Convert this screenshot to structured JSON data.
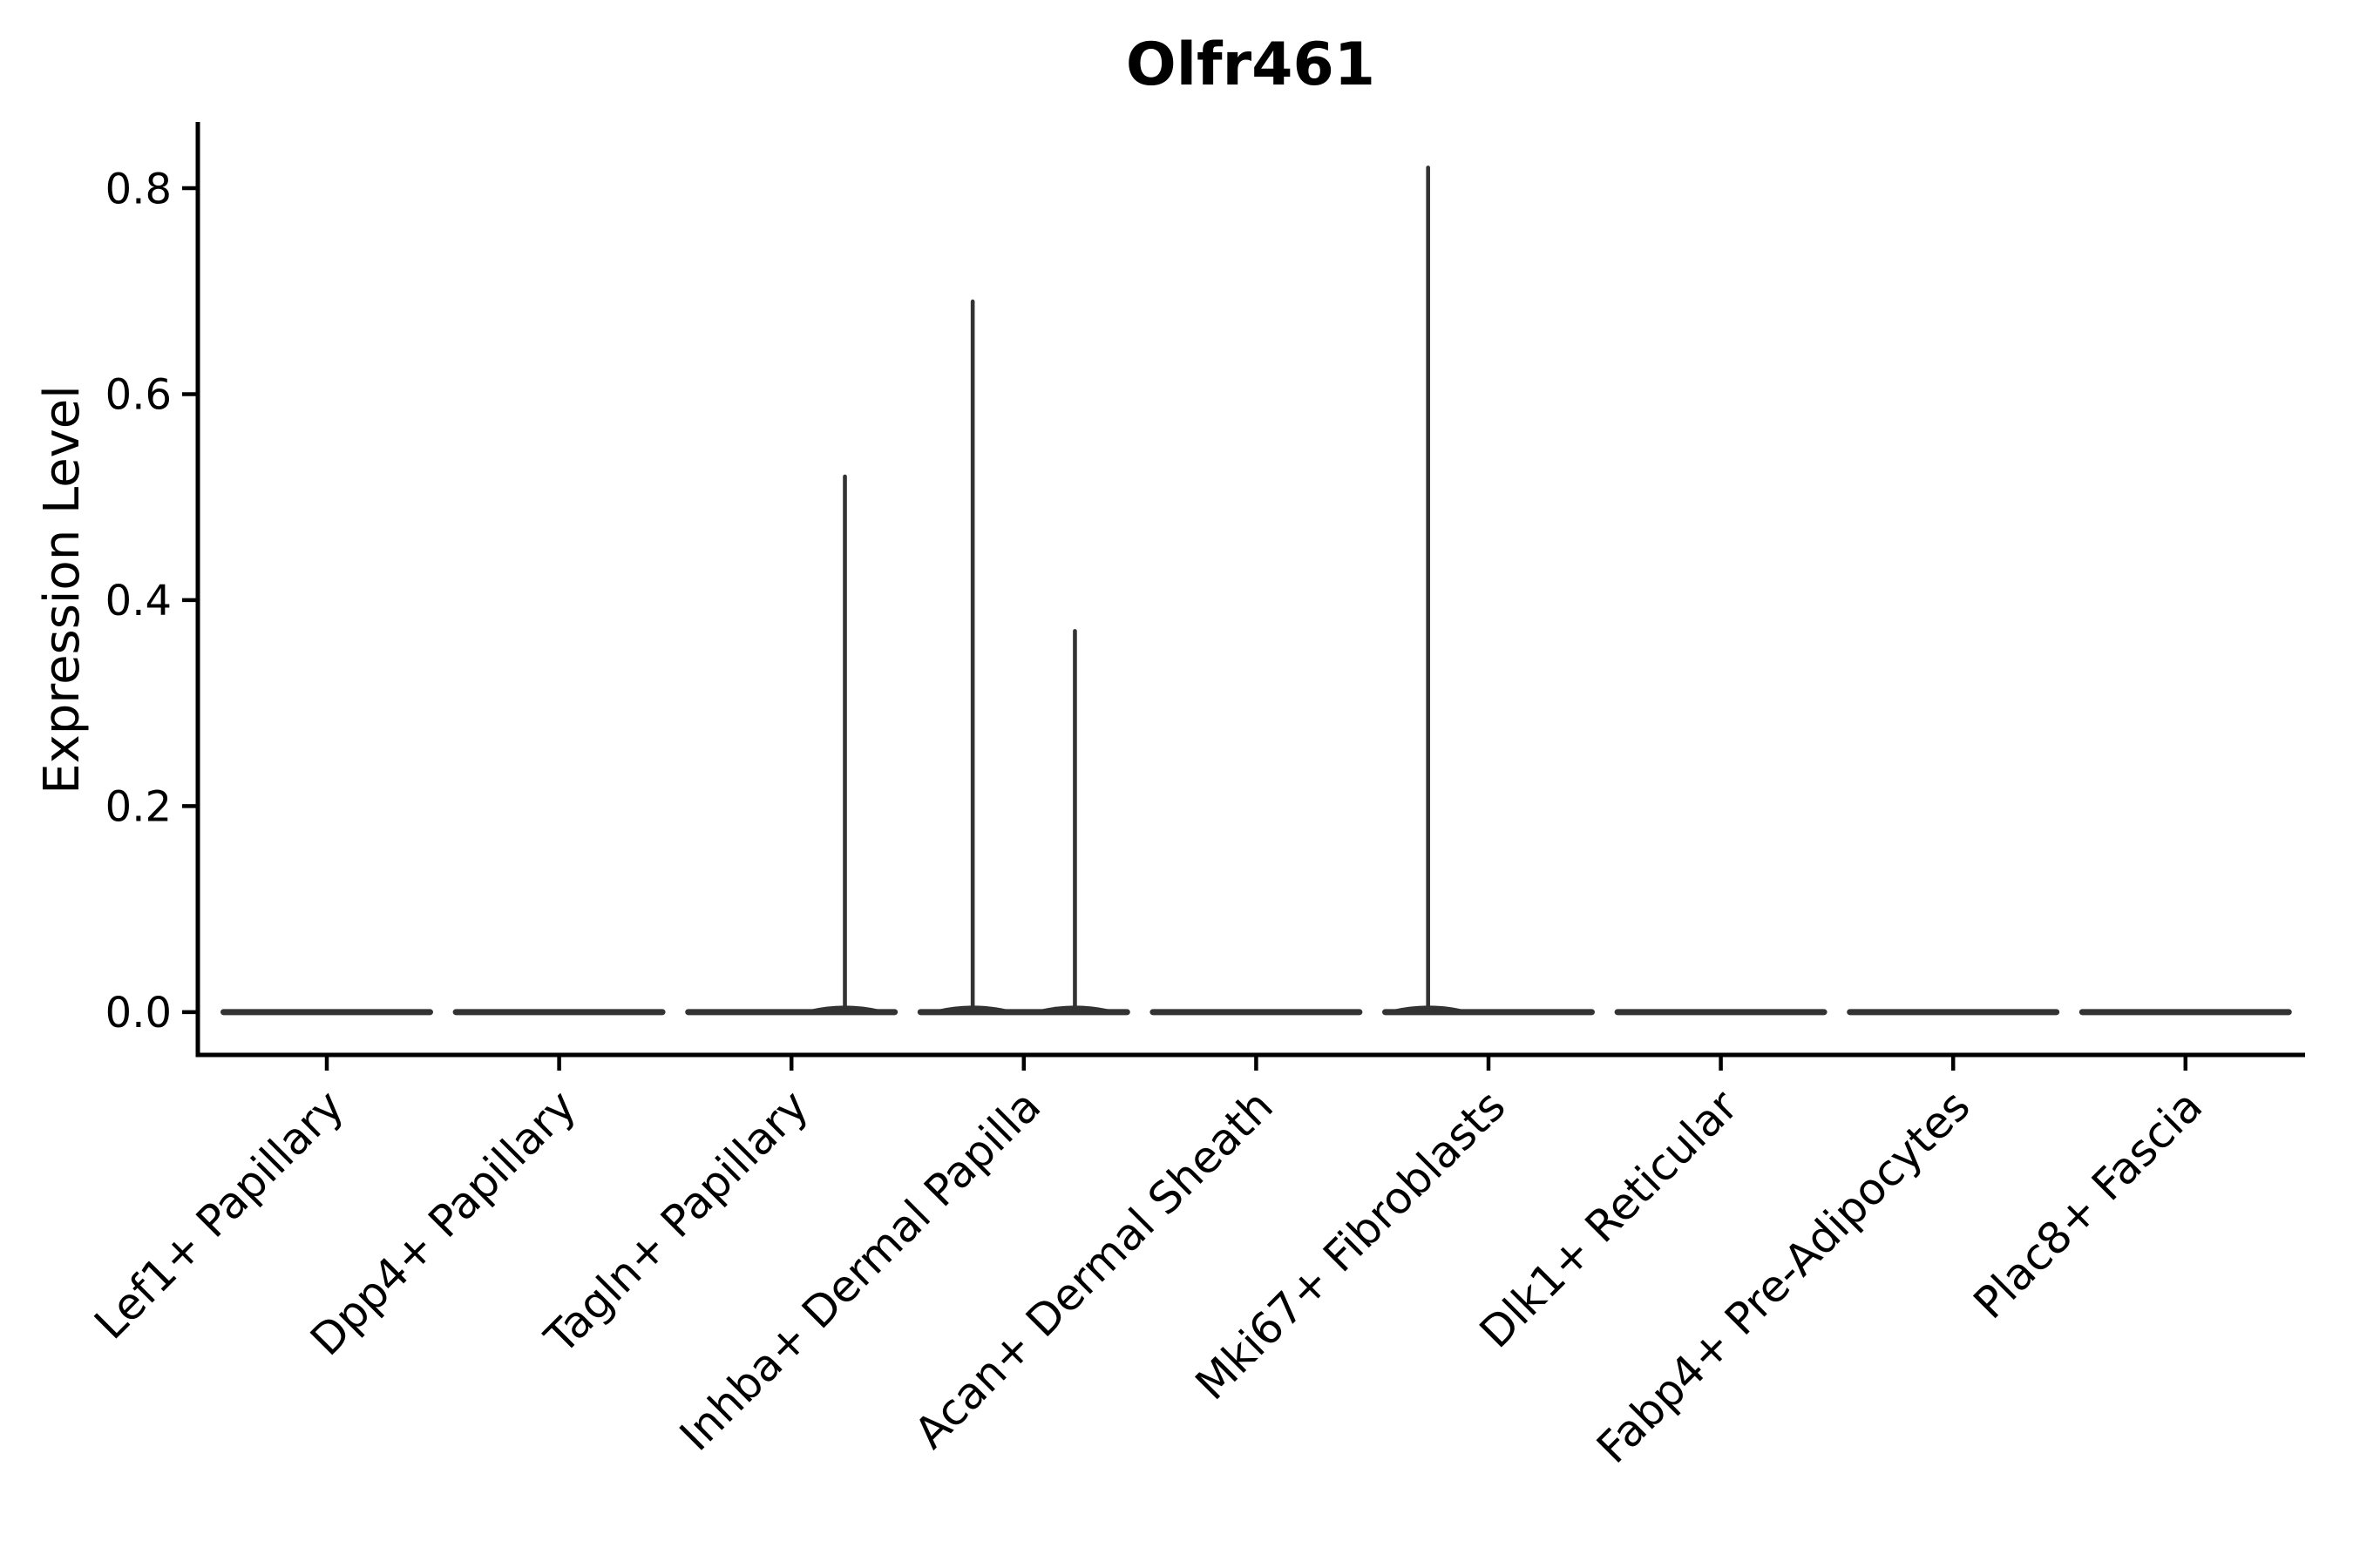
{
  "chart_data": {
    "type": "violin",
    "title": "Olfr461",
    "xlabel": "",
    "ylabel": "Expression Level",
    "categories": [
      "Lef1+ Papillary",
      "Dpp4+ Papillary",
      "Tagln+ Papillary",
      "Inhba+ Dermal Papilla",
      "Acan+ Dermal Sheath",
      "Mki67+ Fibroblasts",
      "Dlk1+ Reticular",
      "Fabp4+ Pre-Adipocytes",
      "Plac8+ Fascia"
    ],
    "yticks": {
      "values": [
        0.0,
        0.2,
        0.4,
        0.6,
        0.8
      ],
      "labels": [
        "0.0",
        "0.2",
        "0.4",
        "0.6",
        "0.8"
      ]
    },
    "ylim": [
      -0.0416,
      0.8643
    ],
    "grid": false,
    "legend": "none",
    "violins": [
      {
        "category": "Lef1+ Papillary",
        "baseline_value": 0.0,
        "max_value": 0.0,
        "spikes": []
      },
      {
        "category": "Dpp4+ Papillary",
        "baseline_value": 0.0,
        "max_value": 0.0,
        "spikes": []
      },
      {
        "category": "Tagln+ Papillary",
        "baseline_value": 0.0,
        "max_value": 0.52,
        "spikes": [
          {
            "offset": 0.23,
            "value": 0.52
          }
        ]
      },
      {
        "category": "Inhba+ Dermal Papilla",
        "baseline_value": 0.0,
        "max_value": 0.69,
        "spikes": [
          {
            "offset": -0.22,
            "value": 0.69
          },
          {
            "offset": 0.22,
            "value": 0.37
          }
        ]
      },
      {
        "category": "Acan+ Dermal Sheath",
        "baseline_value": 0.0,
        "max_value": 0.0,
        "spikes": []
      },
      {
        "category": "Mki67+ Fibroblasts",
        "baseline_value": 0.0,
        "max_value": 0.82,
        "spikes": [
          {
            "offset": -0.26,
            "value": 0.82
          }
        ]
      },
      {
        "category": "Dlk1+ Reticular",
        "baseline_value": 0.0,
        "max_value": 0.0,
        "spikes": []
      },
      {
        "category": "Fabp4+ Pre-Adipocytes",
        "baseline_value": 0.0,
        "max_value": 0.0,
        "spikes": []
      },
      {
        "category": "Plac8+ Fascia",
        "baseline_value": 0.0,
        "max_value": 0.0,
        "spikes": []
      }
    ],
    "colors": {
      "violin_fill": "#333333",
      "axis": "#000000",
      "text": "#000000",
      "background": "#ffffff"
    }
  }
}
